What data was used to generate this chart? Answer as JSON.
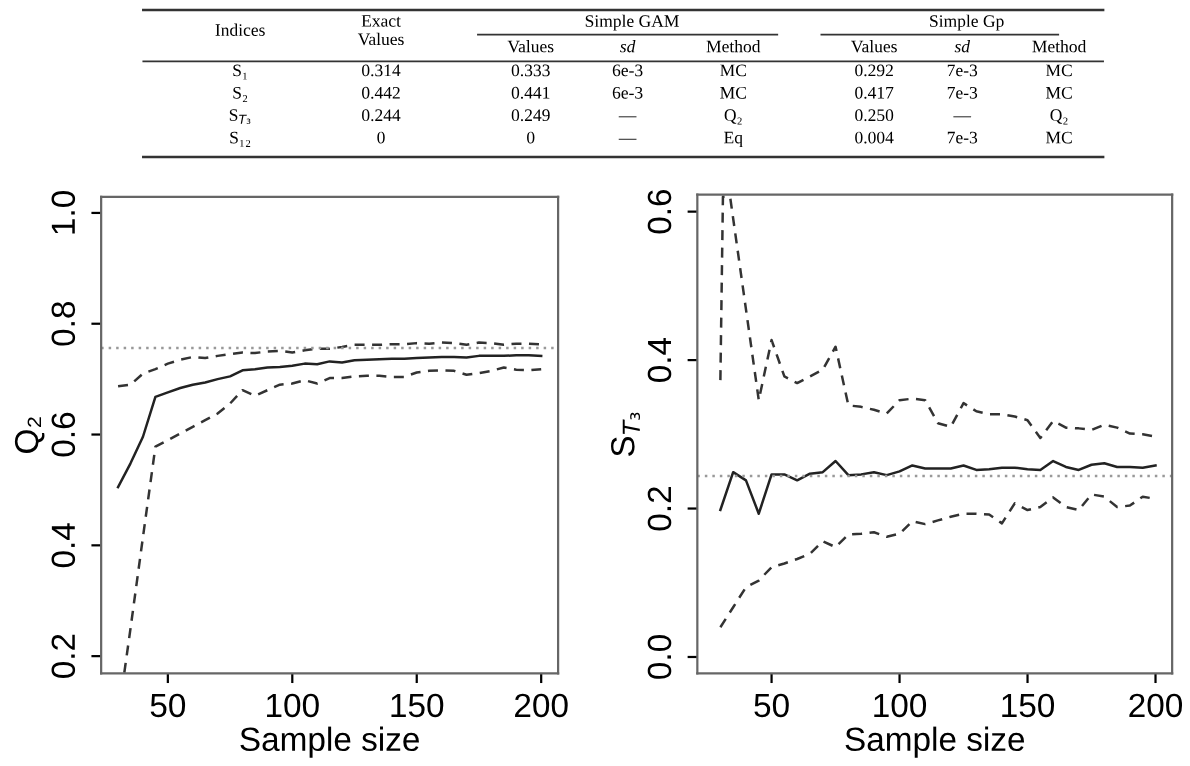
{
  "chart_data": [
    {
      "type": "other",
      "annotations": [
        "Simple GAM",
        "Simple Gp",
        "Indices",
        "Exact\nValues",
        "Values",
        "sd",
        "Method",
        "Values",
        "sd",
        "Method",
        "S₁",
        "0.314",
        "0.333",
        "6e-3",
        "MC",
        "0.292",
        "7e-3",
        "MC",
        "S₂",
        "0.442",
        "0.441",
        "6e-3",
        "MC",
        "0.417",
        "7e-3",
        "MC",
        "S$_{T₃}$",
        "0.244",
        "0.249",
        "—",
        "Q₂",
        "0.250",
        "—",
        "Q₂",
        "S₁₂",
        "0",
        "0",
        "—",
        "Eq",
        "0.004",
        "7e-3",
        "MC"
      ]
    },
    {
      "type": "line",
      "xlabel": "Sample size",
      "ylabel": "Q₂",
      "xlim": [
        23.2,
        206.8
      ],
      "ylim": [
        0.169,
        1.029
      ],
      "xticks": [
        50,
        100,
        150,
        200
      ],
      "yticks": [
        0.2,
        0.4,
        0.6,
        0.8,
        {
          "value": 1,
          "label": "1.0"
        }
      ],
      "grid": false,
      "x": [
        30,
        35,
        40,
        45,
        50,
        55,
        60,
        65,
        70,
        75,
        80,
        85,
        90,
        95,
        100,
        105,
        110,
        115,
        120,
        125,
        130,
        135,
        140,
        145,
        150,
        155,
        160,
        165,
        170,
        175,
        180,
        185,
        190,
        195,
        200
      ],
      "series": [
        {
          "color": "#222222",
          "line_style": "solid",
          "values": [
            0.505,
            0.548,
            0.596,
            0.668,
            0.676,
            0.684,
            0.69,
            0.694,
            0.7,
            0.705,
            0.716,
            0.718,
            0.721,
            0.722,
            0.724,
            0.728,
            0.727,
            0.732,
            0.73,
            0.734,
            0.735,
            0.736,
            0.737,
            0.737,
            0.738,
            0.739,
            0.74,
            0.74,
            0.739,
            0.742,
            0.742,
            0.742,
            0.743,
            0.743,
            0.742
          ]
        },
        {
          "color": "#333333",
          "line_style": "dashed",
          "values": [
            0.687,
            0.69,
            0.71,
            0.718,
            0.728,
            0.735,
            0.74,
            0.738,
            0.742,
            0.745,
            0.748,
            0.747,
            0.75,
            0.751,
            0.748,
            0.752,
            0.755,
            0.755,
            0.758,
            0.762,
            0.762,
            0.762,
            0.763,
            0.763,
            0.765,
            0.764,
            0.766,
            0.765,
            0.762,
            0.766,
            0.765,
            0.762,
            0.764,
            0.764,
            0.763
          ]
        },
        {
          "color": "#333333",
          "line_style": "dashed",
          "x": [
            32.5,
            35,
            40,
            45,
            50,
            55,
            60,
            65,
            70,
            75,
            80,
            85,
            90,
            95,
            100,
            105,
            110,
            115,
            120,
            125,
            130,
            135,
            140,
            145,
            150,
            155,
            160,
            165,
            170,
            175,
            180,
            185,
            190,
            195,
            200
          ],
          "values": [
            0.17,
            0.25,
            0.415,
            0.578,
            0.59,
            0.602,
            0.614,
            0.626,
            0.638,
            0.656,
            0.68,
            0.67,
            0.68,
            0.69,
            0.692,
            0.698,
            0.692,
            0.702,
            0.702,
            0.705,
            0.706,
            0.706,
            0.704,
            0.704,
            0.712,
            0.715,
            0.716,
            0.715,
            0.708,
            0.711,
            0.715,
            0.721,
            0.717,
            0.716,
            0.718
          ]
        }
      ],
      "ref_lines": [
        {
          "axis": "y",
          "value": 0.756,
          "color": "#999999",
          "line_style": "dotted"
        }
      ]
    },
    {
      "type": "line",
      "xlabel": "Sample size",
      "ylabel": "S$_{T₃}$",
      "xlim": [
        21,
        206.5
      ],
      "ylim": [
        -0.022,
        0.623
      ],
      "xticks": [
        50,
        100,
        150,
        200
      ],
      "yticks": [
        {
          "value": 0,
          "label": "0.0"
        },
        0.2,
        0.4,
        0.6
      ],
      "grid": false,
      "x": [
        30,
        35,
        40,
        45,
        50,
        55,
        60,
        65,
        70,
        75,
        80,
        85,
        90,
        95,
        100,
        105,
        110,
        115,
        120,
        125,
        130,
        135,
        140,
        145,
        150,
        155,
        160,
        165,
        170,
        175,
        180,
        185,
        190,
        195,
        200
      ],
      "series": [
        {
          "color": "#222222",
          "line_style": "solid",
          "values": [
            0.198,
            0.249,
            0.238,
            0.193,
            0.246,
            0.246,
            0.238,
            0.247,
            0.249,
            0.264,
            0.245,
            0.246,
            0.249,
            0.245,
            0.25,
            0.258,
            0.254,
            0.254,
            0.254,
            0.258,
            0.252,
            0.253,
            0.255,
            0.255,
            0.253,
            0.252,
            0.264,
            0.256,
            0.252,
            0.259,
            0.261,
            0.256,
            0.256,
            0.255,
            0.258
          ]
        },
        {
          "color": "#333333",
          "line_style": "dashed",
          "x": [
            30,
            31,
            33.8,
            45,
            50,
            55,
            60,
            65,
            70,
            75,
            80,
            85,
            90,
            95,
            100,
            105,
            110,
            115,
            120,
            125,
            130,
            135,
            140,
            145,
            150,
            155,
            160,
            165,
            170,
            175,
            180,
            185,
            190,
            195,
            200
          ],
          "values": [
            0.373,
            0.62,
            0.62,
            0.346,
            0.427,
            0.378,
            0.369,
            0.378,
            0.387,
            0.418,
            0.339,
            0.337,
            0.333,
            0.328,
            0.346,
            0.348,
            0.346,
            0.315,
            0.31,
            0.342,
            0.331,
            0.327,
            0.327,
            0.324,
            0.319,
            0.295,
            0.318,
            0.309,
            0.308,
            0.306,
            0.313,
            0.309,
            0.301,
            0.3,
            0.297
          ]
        },
        {
          "color": "#333333",
          "line_style": "dashed",
          "values": [
            0.04,
            0.067,
            0.094,
            0.103,
            0.121,
            0.126,
            0.132,
            0.139,
            0.156,
            0.148,
            0.165,
            0.166,
            0.168,
            0.162,
            0.166,
            0.183,
            0.179,
            0.184,
            0.189,
            0.193,
            0.193,
            0.192,
            0.18,
            0.207,
            0.198,
            0.202,
            0.215,
            0.202,
            0.198,
            0.219,
            0.216,
            0.202,
            0.204,
            0.216,
            0.213
          ]
        }
      ],
      "ref_lines": [
        {
          "axis": "y",
          "value": 0.244,
          "color": "#999999",
          "line_style": "dotted"
        }
      ]
    }
  ]
}
